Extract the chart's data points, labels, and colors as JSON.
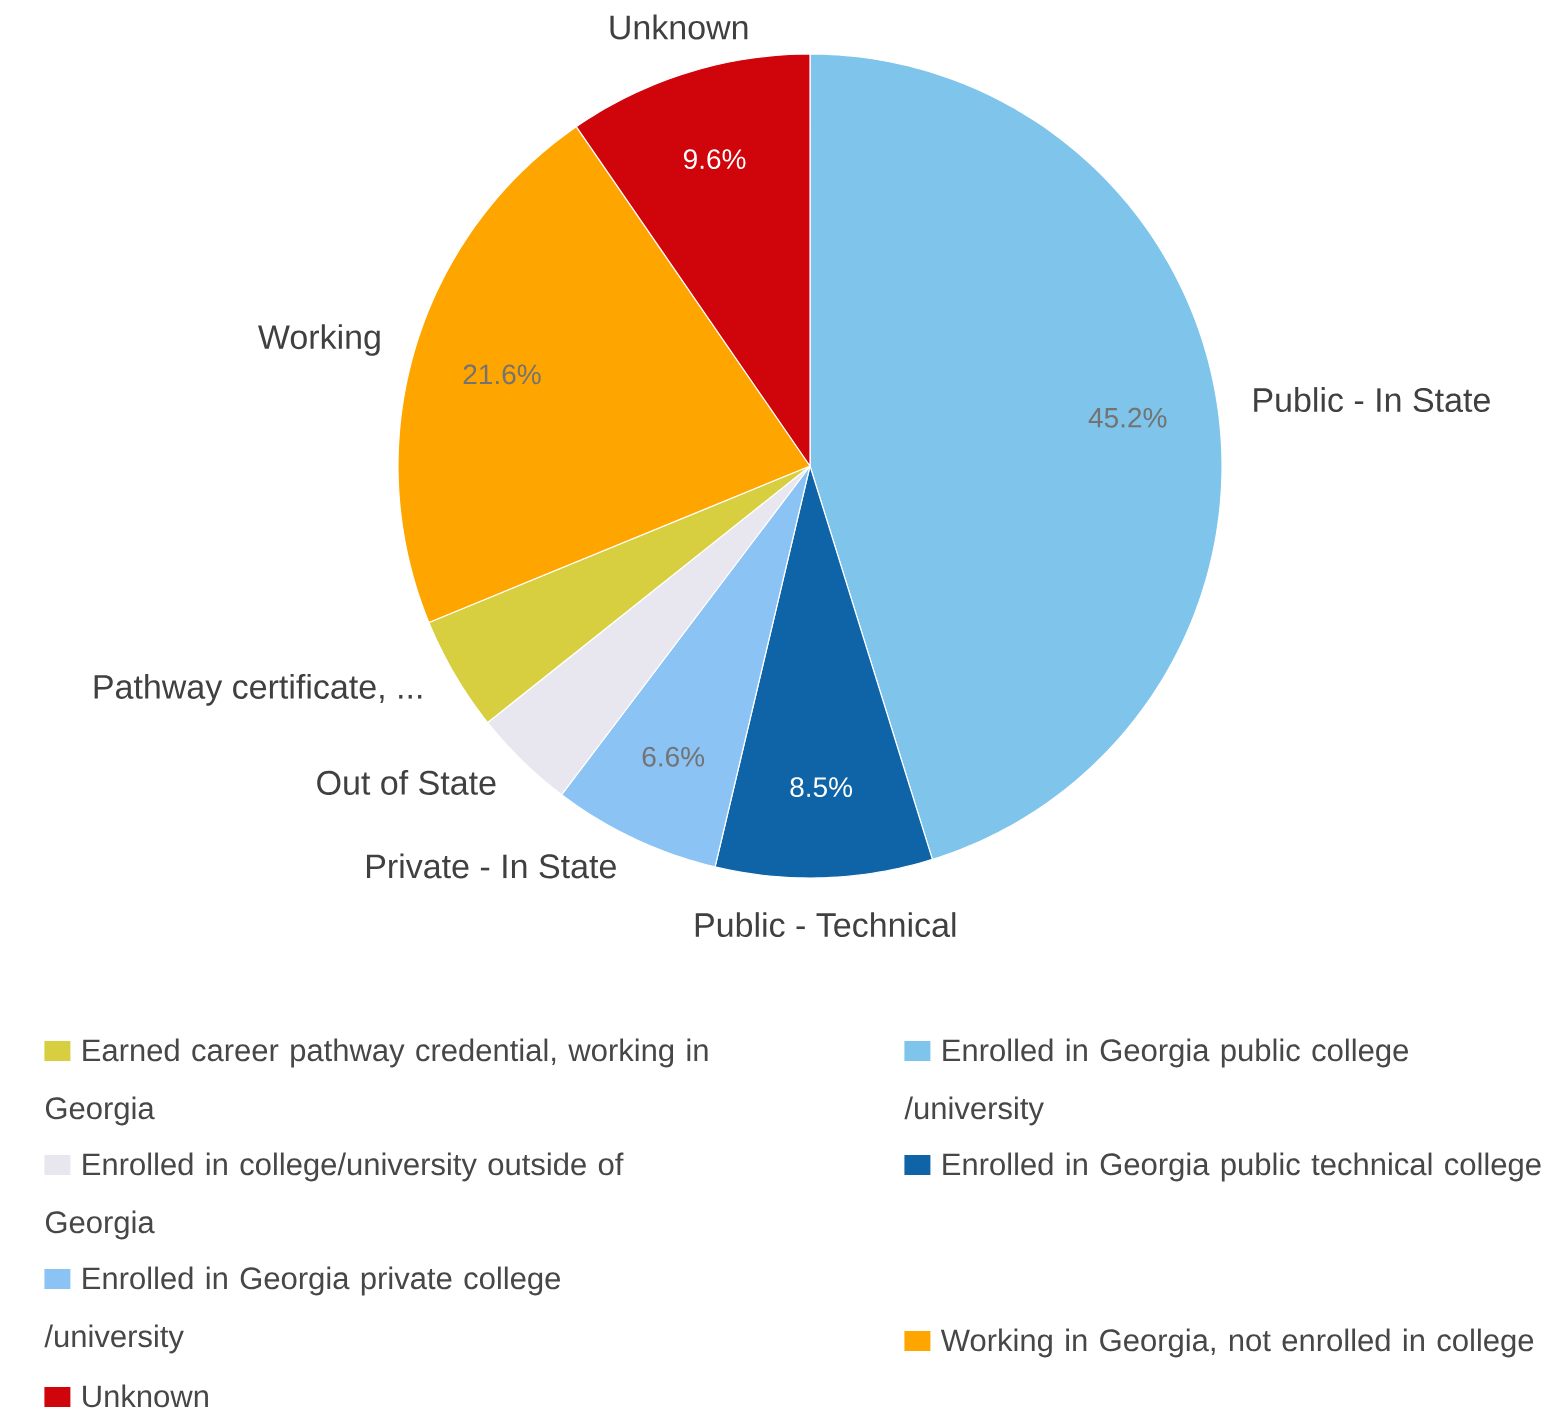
{
  "chart_data": {
    "type": "pie",
    "categories": [
      "Public - In State",
      "Public - Technical",
      "Private - In State",
      "Out of State",
      "Pathway certificate, ...",
      "Working",
      "Unknown"
    ],
    "values": [
      45.2,
      8.5,
      6.6,
      4.0,
      4.5,
      21.6,
      9.6
    ],
    "value_labels": [
      "45.2%",
      "8.5%",
      "6.6%",
      null,
      null,
      "21.6%",
      "9.6%"
    ],
    "colors": [
      "#7fc4ea",
      "#0f64a8",
      "#8cc3f5",
      "#e8e6ef",
      "#d7cf3f",
      "#ffa500",
      "#d0050b"
    ],
    "annotations": [
      "Earned career pathway credential, working in Georgia",
      "Enrolled in college/university outside of Georgia",
      "Enrolled in Georgia private college /university",
      "Unknown",
      "Enrolled in Georgia public college /university",
      "Enrolled in Georgia public technical college",
      "Working in Georgia, not enrolled in college"
    ]
  }
}
